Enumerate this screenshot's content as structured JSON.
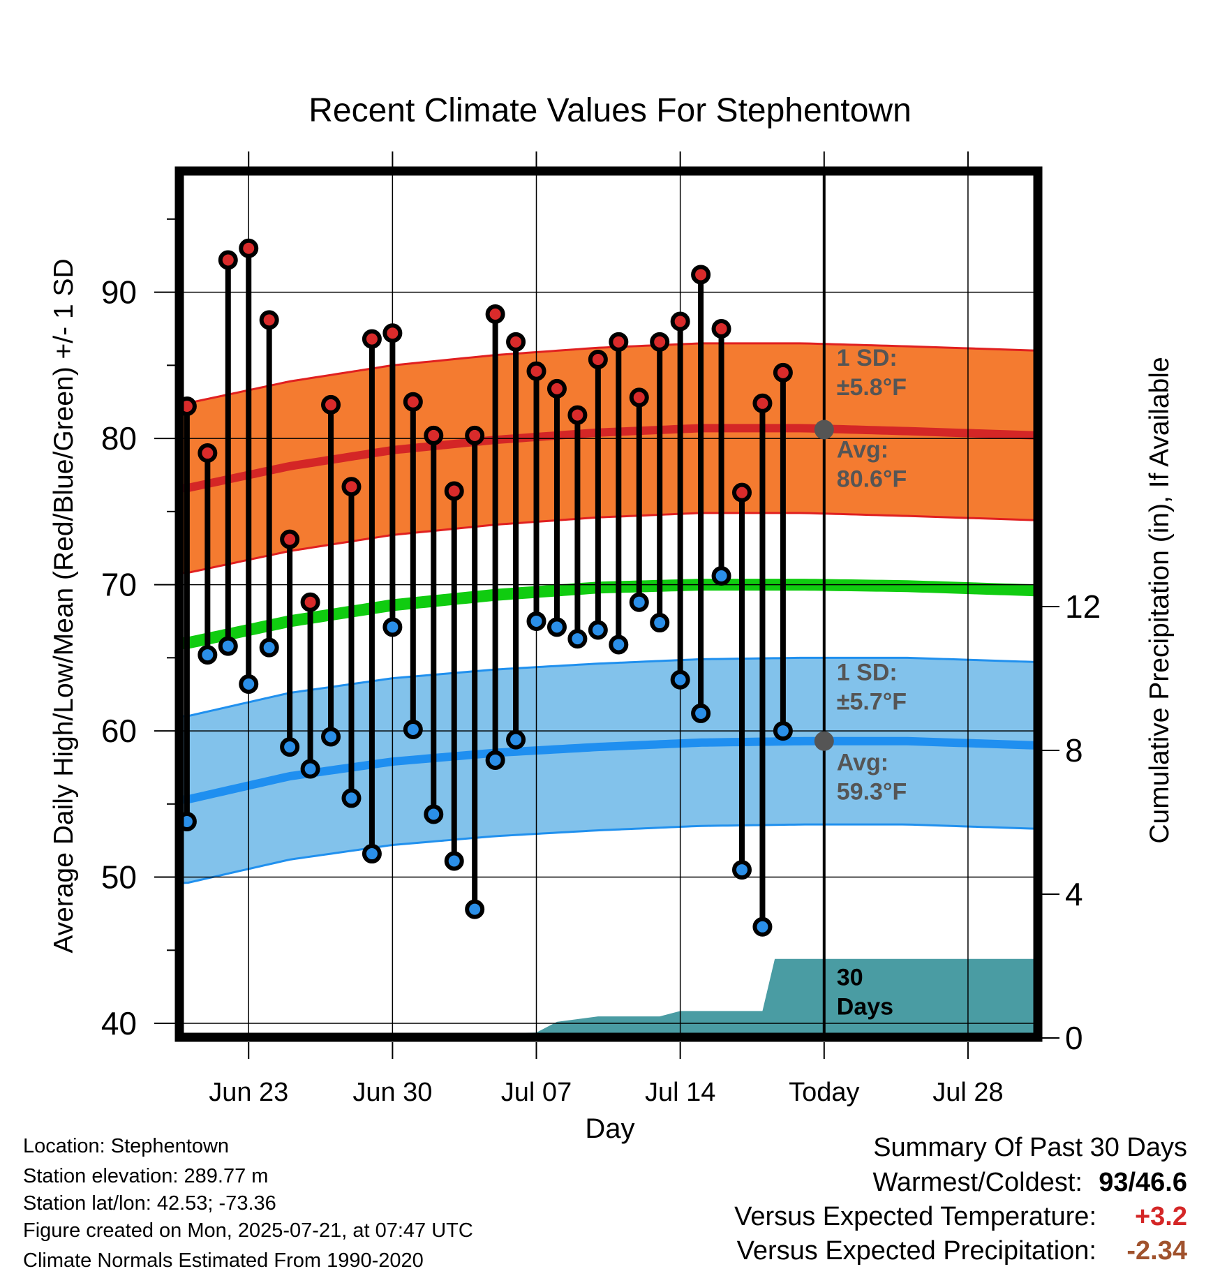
{
  "chart_data": {
    "type": "line",
    "title": "Recent Climate Values For Stephentown",
    "xlabel": "Day",
    "ylabel": "Average Daily High/Low/Mean (Red/Blue/Green) +/- 1 SD",
    "y2label": "Cumulative Precipitation (in), If Available",
    "x_tick_labels": [
      "Jun 23",
      "Jun 30",
      "Jul 07",
      "Jul 14",
      "Today",
      "Jul 28"
    ],
    "x_tick_days": [
      3,
      10,
      17,
      24,
      31,
      38
    ],
    "x_range_days": [
      -0.2,
      41.5
    ],
    "ylim": [
      39,
      98
    ],
    "y_ticks": [
      40,
      50,
      60,
      70,
      80,
      90
    ],
    "y2lim": [
      0,
      24
    ],
    "y2_ticks": [
      0,
      4,
      8,
      12
    ],
    "grid": true,
    "today_day": 31,
    "series": [
      {
        "name": "High",
        "color": "#d92b2b",
        "days": [
          0,
          1,
          2,
          3,
          4,
          5,
          6,
          7,
          8,
          9,
          10,
          11,
          12,
          13,
          14,
          15,
          16,
          17,
          18,
          19,
          20,
          21,
          22,
          23,
          24,
          25,
          26,
          27,
          28,
          29,
          30
        ],
        "values": [
          82.2,
          79.0,
          92.2,
          93.0,
          88.1,
          73.1,
          68.8,
          82.3,
          76.7,
          86.8,
          87.2,
          82.5,
          80.2,
          76.4,
          80.2,
          88.5,
          86.6,
          84.6,
          83.4,
          81.6,
          85.4,
          86.6,
          82.8,
          86.6,
          88.0,
          91.2,
          87.5,
          76.3,
          82.4,
          84.5,
          null
        ]
      },
      {
        "name": "Low",
        "color": "#2b8fe8",
        "days": [
          0,
          1,
          2,
          3,
          4,
          5,
          6,
          7,
          8,
          9,
          10,
          11,
          12,
          13,
          14,
          15,
          16,
          17,
          18,
          19,
          20,
          21,
          22,
          23,
          24,
          25,
          26,
          27,
          28,
          29,
          30
        ],
        "values": [
          53.8,
          65.2,
          65.8,
          63.2,
          65.7,
          58.9,
          57.4,
          59.6,
          55.4,
          51.6,
          67.1,
          60.1,
          54.3,
          51.1,
          47.8,
          58.0,
          59.4,
          67.5,
          67.1,
          66.3,
          66.9,
          65.9,
          68.8,
          67.4,
          63.5,
          61.2,
          70.6,
          50.5,
          46.6,
          60.0,
          null
        ]
      }
    ],
    "normals": {
      "days": [
        0,
        5,
        10,
        15,
        20,
        25,
        30,
        35,
        41.5
      ],
      "high_avg": [
        76.6,
        78.1,
        79.2,
        79.9,
        80.4,
        80.7,
        80.7,
        80.5,
        80.2
      ],
      "high_sd": 5.8,
      "low_avg": [
        55.3,
        56.9,
        57.9,
        58.5,
        58.9,
        59.2,
        59.3,
        59.3,
        59.0
      ],
      "low_sd": 5.7,
      "mean_avg": [
        66.0,
        67.5,
        68.6,
        69.3,
        69.8,
        70.0,
        70.0,
        69.9,
        69.6
      ]
    },
    "precipitation": {
      "days": [
        0,
        9,
        10,
        17,
        18,
        20,
        23,
        24,
        28,
        28.6,
        41.5
      ],
      "cumulative_in": [
        0,
        0,
        0.1,
        0.15,
        0.45,
        0.6,
        0.6,
        0.75,
        0.75,
        2.2,
        2.2
      ]
    },
    "annotations": {
      "high_sd": [
        "1 SD:",
        "±5.8°F"
      ],
      "high_avg": [
        "Avg:",
        "80.6°F"
      ],
      "low_sd": [
        "1 SD:",
        "±5.7°F"
      ],
      "low_avg": [
        "Avg:",
        "59.3°F"
      ],
      "period": [
        "30",
        "Days"
      ]
    },
    "colors": {
      "high_band": "#f47b30",
      "high_line": "#d42626",
      "low_band": "#82c2eb",
      "low_line": "#1f8ff0",
      "mean_line": "#10cc10",
      "precip_fill": "#4a9ca3",
      "annotation_text": "#555555",
      "stem": "#000000"
    }
  },
  "info": {
    "location": "Location: Stephentown",
    "elevation": "Station elevation: 289.77 m",
    "latlon": "Station lat/lon: 42.53; -73.36",
    "created": "Figure created on Mon, 2025-07-21, at 07:47 UTC",
    "normals": "Climate Normals Estimated From 1990-2020"
  },
  "summary": {
    "title": "Summary Of Past 30 Days",
    "warmest_label": "Warmest/Coldest:",
    "warmest_value": "93/46.6",
    "temp_label": "Versus Expected Temperature:",
    "temp_value": "+3.2",
    "precip_label": "Versus Expected Precipitation:",
    "precip_value": "-2.34",
    "temp_color": "#d42626",
    "precip_color": "#a0522d"
  }
}
